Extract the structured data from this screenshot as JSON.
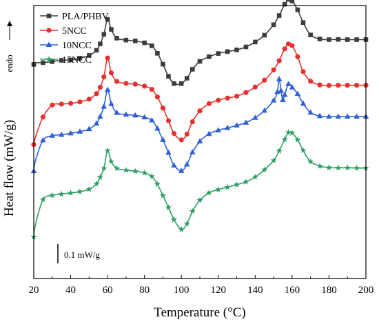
{
  "chart_data": {
    "type": "line",
    "title": "",
    "xlabel": "Temperature (°C)",
    "ylabel": "Heat flow (mW/g)",
    "endo_label": "endo",
    "xlim": [
      20,
      200
    ],
    "ylim": [
      0,
      1.28
    ],
    "y_tick_labels_shown": false,
    "x_ticks": [
      20,
      40,
      60,
      80,
      100,
      120,
      140,
      160,
      180,
      200
    ],
    "scale_bar": {
      "label": "0.1 mW/g",
      "value": 0.1
    },
    "legend": {
      "position": "top-left"
    },
    "grid": false,
    "series": [
      {
        "name": "PLA/PHBV",
        "color": "#3d3d3d",
        "marker": "square",
        "x": [
          20,
          21,
          25,
          30,
          35,
          40,
          45,
          50,
          54,
          56,
          58,
          60,
          62,
          65,
          70,
          75,
          80,
          84,
          87,
          90,
          93,
          96,
          100,
          103,
          106,
          110,
          115,
          120,
          125,
          130,
          135,
          140,
          145,
          150,
          153,
          156,
          158,
          160,
          163,
          166,
          170,
          175,
          180,
          185,
          190,
          195,
          200
        ],
        "y": [
          1.004,
          1.012,
          1.012,
          1.017,
          1.023,
          1.025,
          1.033,
          1.046,
          1.07,
          1.1,
          1.145,
          1.215,
          1.168,
          1.127,
          1.118,
          1.114,
          1.105,
          1.091,
          1.056,
          1.005,
          0.948,
          0.914,
          0.914,
          0.939,
          0.981,
          1.018,
          1.04,
          1.055,
          1.064,
          1.072,
          1.086,
          1.109,
          1.141,
          1.19,
          1.233,
          1.286,
          1.309,
          1.301,
          1.26,
          1.2,
          1.142,
          1.123,
          1.12,
          1.121,
          1.12,
          1.12,
          1.12
        ]
      },
      {
        "name": "5NCC",
        "color": "#e8312f",
        "marker": "circle",
        "x": [
          20,
          21,
          25,
          30,
          35,
          40,
          45,
          50,
          54,
          56,
          58,
          60,
          62,
          65,
          70,
          75,
          80,
          84,
          87,
          90,
          93,
          96,
          100,
          103,
          106,
          110,
          115,
          120,
          125,
          130,
          135,
          140,
          145,
          150,
          153,
          156,
          158,
          160,
          163,
          166,
          170,
          175,
          180,
          185,
          190,
          195,
          200
        ],
        "y": [
          0.628,
          0.665,
          0.757,
          0.813,
          0.818,
          0.821,
          0.828,
          0.841,
          0.867,
          0.897,
          0.945,
          1.034,
          0.964,
          0.924,
          0.915,
          0.911,
          0.902,
          0.887,
          0.851,
          0.799,
          0.74,
          0.68,
          0.65,
          0.677,
          0.735,
          0.786,
          0.82,
          0.836,
          0.846,
          0.855,
          0.872,
          0.898,
          0.93,
          0.978,
          1.021,
          1.077,
          1.1,
          1.092,
          1.04,
          0.97,
          0.925,
          0.908,
          0.905,
          0.906,
          0.906,
          0.906,
          0.906
        ]
      },
      {
        "name": "10NCC",
        "color": "#2f5fd8",
        "marker": "triangle",
        "x": [
          20,
          21,
          25,
          30,
          35,
          40,
          45,
          50,
          54,
          56,
          58,
          60,
          62,
          65,
          70,
          75,
          80,
          84,
          87,
          90,
          93,
          96,
          100,
          103,
          106,
          110,
          115,
          120,
          125,
          130,
          135,
          140,
          145,
          150,
          152,
          153,
          154,
          155,
          156,
          158,
          160,
          163,
          166,
          170,
          175,
          180,
          185,
          190,
          195,
          200
        ],
        "y": [
          0.504,
          0.556,
          0.648,
          0.67,
          0.674,
          0.681,
          0.689,
          0.701,
          0.727,
          0.759,
          0.806,
          0.885,
          0.819,
          0.777,
          0.769,
          0.765,
          0.756,
          0.742,
          0.703,
          0.65,
          0.59,
          0.53,
          0.505,
          0.535,
          0.592,
          0.643,
          0.678,
          0.695,
          0.706,
          0.718,
          0.731,
          0.754,
          0.787,
          0.835,
          0.875,
          0.935,
          0.88,
          0.837,
          0.861,
          0.912,
          0.896,
          0.866,
          0.82,
          0.778,
          0.762,
          0.759,
          0.759,
          0.759,
          0.759,
          0.759
        ]
      },
      {
        "name": "15NCC",
        "color": "#2e9e64",
        "marker": "star",
        "x": [
          20,
          21,
          25,
          30,
          35,
          40,
          45,
          50,
          54,
          56,
          58,
          60,
          62,
          65,
          70,
          75,
          80,
          84,
          87,
          90,
          93,
          96,
          100,
          103,
          106,
          110,
          115,
          120,
          125,
          130,
          135,
          140,
          145,
          150,
          153,
          156,
          158,
          160,
          163,
          166,
          170,
          175,
          180,
          185,
          190,
          195,
          200
        ],
        "y": [
          0.195,
          0.255,
          0.37,
          0.39,
          0.396,
          0.401,
          0.407,
          0.418,
          0.444,
          0.475,
          0.516,
          0.6,
          0.548,
          0.517,
          0.508,
          0.503,
          0.495,
          0.479,
          0.442,
          0.389,
          0.333,
          0.276,
          0.23,
          0.256,
          0.315,
          0.367,
          0.402,
          0.417,
          0.428,
          0.44,
          0.453,
          0.476,
          0.51,
          0.553,
          0.598,
          0.652,
          0.685,
          0.682,
          0.65,
          0.6,
          0.548,
          0.527,
          0.52,
          0.519,
          0.519,
          0.518,
          0.518
        ]
      }
    ]
  }
}
